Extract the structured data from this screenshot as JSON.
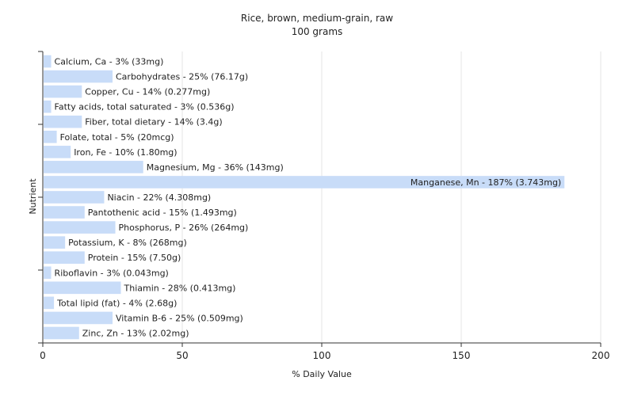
{
  "chart_data": {
    "type": "bar",
    "orientation": "horizontal",
    "title": "Rice, brown, medium-grain, raw",
    "subtitle": "100 grams",
    "xlabel": "% Daily Value",
    "ylabel": "Nutrient",
    "xlim": [
      0,
      200
    ],
    "xticks": [
      0,
      50,
      100,
      150,
      200
    ],
    "grid": true,
    "bar_color": "#c8dcf8",
    "categories": [
      "Calcium, Ca",
      "Carbohydrates",
      "Copper, Cu",
      "Fatty acids, total saturated",
      "Fiber, total dietary",
      "Folate, total",
      "Iron, Fe",
      "Magnesium, Mg",
      "Manganese, Mn",
      "Niacin",
      "Pantothenic acid",
      "Phosphorus, P",
      "Potassium, K",
      "Protein",
      "Riboflavin",
      "Thiamin",
      "Total lipid (fat)",
      "Vitamin B-6",
      "Zinc, Zn"
    ],
    "values": [
      3,
      25,
      14,
      3,
      14,
      5,
      10,
      36,
      187,
      22,
      15,
      26,
      8,
      15,
      3,
      28,
      4,
      25,
      13
    ],
    "labels": [
      "Calcium, Ca - 3% (33mg)",
      "Carbohydrates - 25% (76.17g)",
      "Copper, Cu - 14% (0.277mg)",
      "Fatty acids, total saturated - 3% (0.536g)",
      "Fiber, total dietary - 14% (3.4g)",
      "Folate, total - 5% (20mcg)",
      "Iron, Fe - 10% (1.80mg)",
      "Magnesium, Mg - 36% (143mg)",
      "Manganese, Mn - 187% (3.743mg)",
      "Niacin - 22% (4.308mg)",
      "Pantothenic acid - 15% (1.493mg)",
      "Phosphorus, P - 26% (264mg)",
      "Potassium, K - 8% (268mg)",
      "Protein - 15% (7.50g)",
      "Riboflavin - 3% (0.043mg)",
      "Thiamin - 28% (0.413mg)",
      "Total lipid (fat) - 4% (2.68g)",
      "Vitamin B-6 - 25% (0.509mg)",
      "Zinc, Zn - 13% (2.02mg)"
    ]
  }
}
